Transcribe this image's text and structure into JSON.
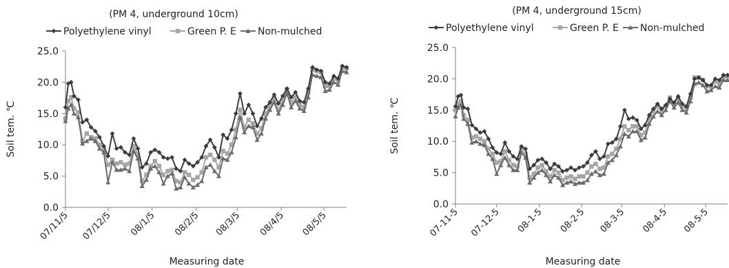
{
  "colors": {
    "polyethylene": "#3c3c3c",
    "green_pe": "#a6a6a6",
    "non_mulched": "#6b6b6b",
    "axis": "#7f7f7f"
  },
  "chart_data": [
    {
      "type": "line",
      "title": "(PM 4, underground 10cm)",
      "xlabel": "Measuring date",
      "ylabel": "Soil tem. ℃",
      "ylim": [
        0,
        25
      ],
      "yticks": [
        "0.0",
        "5.0",
        "10.0",
        "15.0",
        "20.0",
        "25.0"
      ],
      "xticks": [
        "07/11/5",
        "07/12/5",
        "08/1/5",
        "08/2/5",
        "08/3/5",
        "08/4/5",
        "08/5/5"
      ],
      "x": [
        "2007-11-05",
        "2007-11-07",
        "2007-11-09",
        "2007-11-11",
        "2007-11-14",
        "2007-11-17",
        "2007-11-20",
        "2007-11-23",
        "2007-11-26",
        "2007-11-29",
        "2007-12-02",
        "2007-12-05",
        "2007-12-08",
        "2007-12-11",
        "2007-12-14",
        "2007-12-17",
        "2007-12-20",
        "2007-12-23",
        "2007-12-26",
        "2007-12-29",
        "2008-01-01",
        "2008-01-04",
        "2008-01-07",
        "2008-01-10",
        "2008-01-13",
        "2008-01-16",
        "2008-01-19",
        "2008-01-22",
        "2008-01-25",
        "2008-01-28",
        "2008-01-31",
        "2008-02-03",
        "2008-02-06",
        "2008-02-09",
        "2008-02-12",
        "2008-02-15",
        "2008-02-18",
        "2008-02-21",
        "2008-02-24",
        "2008-02-27",
        "2008-03-01",
        "2008-03-04",
        "2008-03-07",
        "2008-03-10",
        "2008-03-13",
        "2008-03-16",
        "2008-03-19",
        "2008-03-22",
        "2008-03-25",
        "2008-03-28",
        "2008-03-31",
        "2008-04-03",
        "2008-04-06",
        "2008-04-09",
        "2008-04-12",
        "2008-04-15",
        "2008-04-18",
        "2008-04-21",
        "2008-04-24",
        "2008-04-27",
        "2008-04-30",
        "2008-05-03",
        "2008-05-06",
        "2008-05-09",
        "2008-05-12",
        "2008-05-15",
        "2008-05-18",
        "2008-05-21"
      ],
      "legend": "top",
      "series": [
        {
          "name": "Polyethylene vinyl",
          "values": [
            16.0,
            19.8,
            20.0,
            17.8,
            17.2,
            13.6,
            14.0,
            12.8,
            12.2,
            11.2,
            9.8,
            8.2,
            11.8,
            9.4,
            9.6,
            8.8,
            8.4,
            11.0,
            9.4,
            6.4,
            7.0,
            8.8,
            9.2,
            8.8,
            8.0,
            7.8,
            8.0,
            6.2,
            5.8,
            7.6,
            7.0,
            6.6,
            7.2,
            8.0,
            9.8,
            10.8,
            9.6,
            8.0,
            11.6,
            11.0,
            12.4,
            15.0,
            18.2,
            15.0,
            16.4,
            15.0,
            13.0,
            14.2,
            16.0,
            16.8,
            18.0,
            16.6,
            17.8,
            19.0,
            17.6,
            18.4,
            17.0,
            16.8,
            19.0,
            22.4,
            22.0,
            21.8,
            20.0,
            19.8,
            21.0,
            20.6,
            22.6,
            22.4
          ]
        },
        {
          "name": "Green P. E",
          "values": [
            14.2,
            17.0,
            17.6,
            15.8,
            15.2,
            10.6,
            11.8,
            11.2,
            11.0,
            10.0,
            9.4,
            6.8,
            7.6,
            7.0,
            7.2,
            6.8,
            7.0,
            9.8,
            8.4,
            4.2,
            5.2,
            6.6,
            7.4,
            6.6,
            5.2,
            5.8,
            6.0,
            4.2,
            4.0,
            5.6,
            5.2,
            4.4,
            4.8,
            5.6,
            8.0,
            8.4,
            7.6,
            6.4,
            9.0,
            8.6,
            10.0,
            12.4,
            15.6,
            12.8,
            14.0,
            13.4,
            11.8,
            12.6,
            15.0,
            16.2,
            17.4,
            15.6,
            17.0,
            18.8,
            16.8,
            17.6,
            16.4,
            16.0,
            18.4,
            22.0,
            21.8,
            21.6,
            19.4,
            19.4,
            20.6,
            20.2,
            22.4,
            22.2
          ]
        },
        {
          "name": "Non-mulched",
          "values": [
            13.8,
            15.8,
            16.4,
            15.0,
            14.4,
            10.2,
            10.6,
            11.0,
            10.6,
            9.4,
            8.8,
            4.0,
            7.2,
            6.0,
            6.0,
            6.2,
            5.8,
            9.0,
            7.8,
            3.4,
            4.4,
            6.2,
            6.6,
            5.6,
            3.8,
            5.0,
            5.4,
            3.0,
            3.2,
            4.8,
            3.8,
            3.2,
            3.6,
            4.2,
            6.4,
            6.8,
            5.8,
            5.0,
            7.8,
            7.6,
            8.8,
            11.2,
            14.4,
            12.0,
            13.0,
            12.8,
            10.8,
            11.8,
            14.2,
            15.6,
            16.8,
            15.0,
            16.4,
            18.2,
            16.0,
            17.0,
            15.8,
            15.4,
            17.6,
            21.2,
            21.0,
            20.8,
            18.6,
            18.8,
            20.0,
            19.6,
            21.8,
            21.6
          ]
        }
      ]
    },
    {
      "type": "line",
      "title": "(PM 4, underground 15cm)",
      "xlabel": "Measuring date",
      "ylabel": "Soil tem. ℃",
      "ylim": [
        0,
        25
      ],
      "yticks": [
        "0.0",
        "5.0",
        "10.0",
        "15.0",
        "20.0",
        "25.0"
      ],
      "xticks": [
        "07-11-5",
        "07-12-5",
        "08-1-5",
        "08-2-5",
        "08-3-5",
        "08-4-5",
        "08-5-5"
      ],
      "x": [
        "2007-11-05",
        "2007-11-07",
        "2007-11-09",
        "2007-11-11",
        "2007-11-14",
        "2007-11-17",
        "2007-11-20",
        "2007-11-23",
        "2007-11-26",
        "2007-11-29",
        "2007-12-02",
        "2007-12-05",
        "2007-12-08",
        "2007-12-11",
        "2007-12-14",
        "2007-12-17",
        "2007-12-20",
        "2007-12-23",
        "2007-12-26",
        "2007-12-29",
        "2008-01-01",
        "2008-01-04",
        "2008-01-07",
        "2008-01-10",
        "2008-01-13",
        "2008-01-16",
        "2008-01-19",
        "2008-01-22",
        "2008-01-25",
        "2008-01-28",
        "2008-01-31",
        "2008-02-03",
        "2008-02-06",
        "2008-02-09",
        "2008-02-12",
        "2008-02-15",
        "2008-02-18",
        "2008-02-21",
        "2008-02-24",
        "2008-02-27",
        "2008-03-01",
        "2008-03-04",
        "2008-03-07",
        "2008-03-10",
        "2008-03-13",
        "2008-03-16",
        "2008-03-19",
        "2008-03-22",
        "2008-03-25",
        "2008-03-28",
        "2008-03-31",
        "2008-04-03",
        "2008-04-06",
        "2008-04-09",
        "2008-04-12",
        "2008-04-15",
        "2008-04-18",
        "2008-04-21",
        "2008-04-24",
        "2008-04-27",
        "2008-04-30",
        "2008-05-03",
        "2008-05-06",
        "2008-05-09",
        "2008-05-12",
        "2008-05-15",
        "2008-05-18",
        "2008-05-21"
      ],
      "legend": "top",
      "series": [
        {
          "name": "Polyethylene vinyl",
          "values": [
            15.6,
            17.2,
            17.4,
            15.4,
            15.2,
            12.6,
            12.0,
            11.4,
            11.6,
            10.4,
            9.0,
            8.2,
            8.0,
            9.8,
            8.4,
            7.6,
            7.2,
            9.2,
            8.8,
            5.6,
            6.2,
            7.0,
            7.2,
            6.6,
            5.6,
            6.4,
            6.0,
            5.2,
            5.4,
            5.8,
            5.4,
            5.8,
            6.0,
            6.6,
            7.8,
            8.4,
            7.2,
            7.6,
            9.6,
            9.8,
            10.4,
            12.4,
            15.0,
            13.6,
            13.8,
            13.4,
            12.0,
            12.6,
            14.2,
            15.2,
            16.0,
            15.2,
            15.8,
            16.8,
            16.2,
            17.2,
            16.0,
            15.6,
            17.6,
            20.0,
            20.2,
            19.8,
            19.0,
            19.0,
            20.0,
            19.8,
            20.6,
            20.6
          ]
        },
        {
          "name": "Green P. E",
          "values": [
            15.0,
            16.0,
            16.4,
            14.2,
            13.4,
            10.6,
            10.8,
            10.4,
            10.0,
            8.8,
            8.0,
            6.6,
            6.8,
            8.4,
            7.0,
            6.2,
            6.0,
            8.8,
            8.0,
            4.2,
            4.8,
            5.8,
            6.2,
            5.2,
            4.4,
            5.4,
            5.0,
            3.8,
            4.2,
            4.4,
            4.0,
            4.4,
            4.4,
            5.0,
            6.0,
            6.4,
            5.6,
            5.8,
            7.6,
            8.0,
            8.8,
            10.4,
            12.4,
            11.8,
            12.4,
            12.4,
            11.0,
            11.4,
            13.6,
            14.8,
            15.6,
            14.8,
            15.6,
            17.0,
            16.0,
            16.8,
            15.6,
            15.2,
            17.0,
            20.2,
            20.2,
            19.8,
            18.8,
            18.8,
            19.6,
            19.2,
            20.4,
            20.4
          ]
        },
        {
          "name": "Non-mulched",
          "values": [
            14.0,
            15.4,
            15.8,
            13.6,
            12.8,
            9.8,
            10.0,
            9.6,
            9.4,
            8.0,
            7.2,
            4.8,
            6.2,
            7.4,
            6.2,
            5.4,
            5.4,
            8.2,
            7.4,
            3.4,
            4.2,
            5.0,
            5.4,
            4.6,
            3.6,
            4.6,
            4.2,
            3.0,
            3.4,
            3.6,
            3.2,
            3.4,
            3.4,
            3.8,
            4.8,
            5.2,
            4.6,
            4.8,
            6.6,
            7.0,
            7.8,
            9.2,
            11.2,
            10.8,
            11.6,
            11.6,
            10.2,
            10.6,
            12.8,
            14.0,
            14.8,
            14.2,
            15.0,
            16.4,
            15.4,
            16.2,
            15.0,
            14.6,
            16.4,
            19.2,
            19.4,
            19.0,
            18.0,
            18.2,
            18.8,
            18.6,
            19.8,
            19.8
          ]
        }
      ]
    }
  ]
}
